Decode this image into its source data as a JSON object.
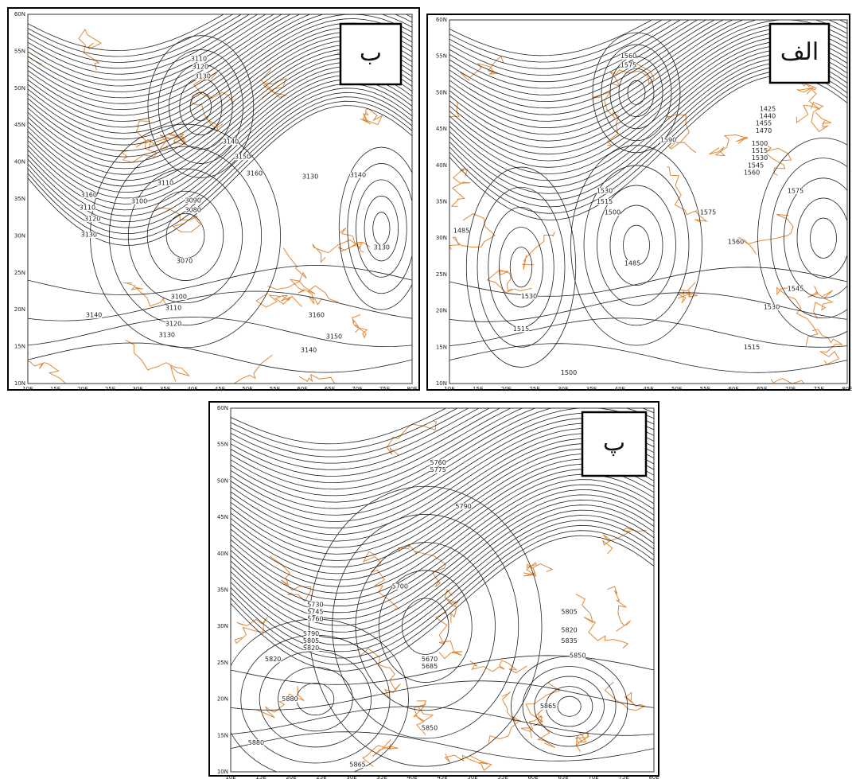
{
  "lat_ticks": [
    "60N",
    "55N",
    "50N",
    "45N",
    "40N",
    "35N",
    "30N",
    "25N",
    "20N",
    "15N",
    "10N"
  ],
  "lon_ticks": [
    "10E",
    "15E",
    "20E",
    "25E",
    "30E",
    "35E",
    "40E",
    "45E",
    "50E",
    "55E",
    "60E",
    "65E",
    "70E",
    "75E",
    "80E"
  ],
  "panels": [
    {
      "label": "ب",
      "contour_labels": [
        "3130",
        "3120",
        "3110",
        "3140",
        "3150",
        "3160",
        "3130",
        "3140",
        "3110",
        "3100",
        "3090",
        "3080",
        "3070",
        "3100",
        "3110",
        "3120",
        "3130",
        "3140",
        "3160",
        "3150",
        "3140",
        "3130",
        "3160",
        "3110",
        "3120",
        "3130"
      ]
    },
    {
      "label": "الف",
      "contour_labels": [
        "1560",
        "1575",
        "1425",
        "1440",
        "1455",
        "1470",
        "1500",
        "1515",
        "1530",
        "1545",
        "1560",
        "1590",
        "1575",
        "1530",
        "1515",
        "1500",
        "1575",
        "1560",
        "1485",
        "1485",
        "1530",
        "1545",
        "1530",
        "1515",
        "1515",
        "1500"
      ]
    },
    {
      "label": "پ",
      "contour_labels": [
        "5760",
        "5775",
        "5790",
        "5700",
        "5730",
        "5745",
        "5760",
        "5790",
        "5805",
        "5820",
        "5820",
        "5670",
        "5685",
        "5805",
        "5820",
        "5835",
        "5850",
        "5880",
        "5865",
        "5850",
        "5880",
        "5865"
      ]
    }
  ]
}
